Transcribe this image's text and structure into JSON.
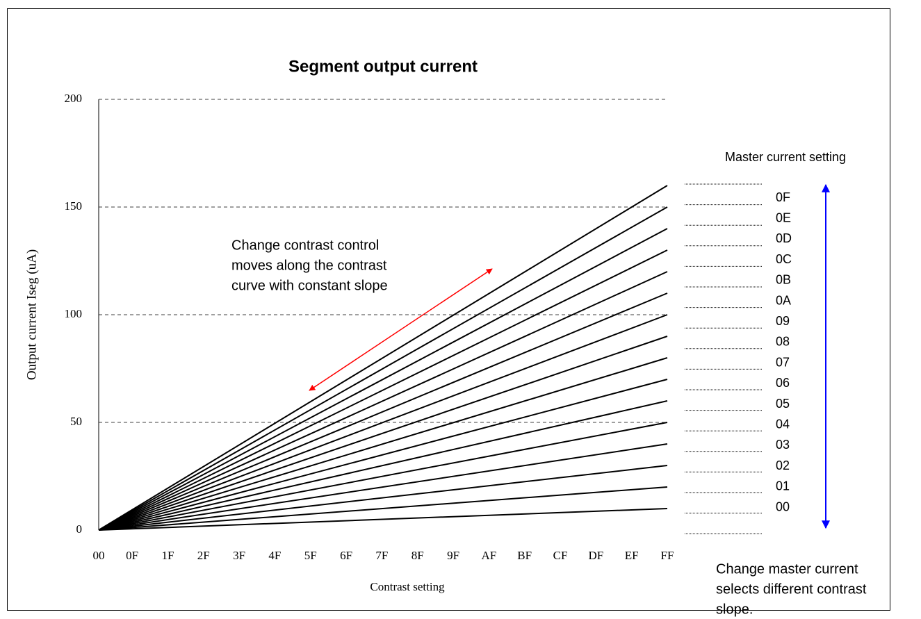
{
  "chart_data": {
    "type": "line",
    "title": "Segment output current",
    "x_label": "Contrast setting",
    "y_label": "Output current Iseg (uA)",
    "xlim": [
      0,
      255
    ],
    "xticks": [
      {
        "value": 0,
        "label": "00"
      },
      {
        "value": 15,
        "label": "0F"
      },
      {
        "value": 31,
        "label": "1F"
      },
      {
        "value": 47,
        "label": "2F"
      },
      {
        "value": 63,
        "label": "3F"
      },
      {
        "value": 79,
        "label": "4F"
      },
      {
        "value": 95,
        "label": "5F"
      },
      {
        "value": 111,
        "label": "6F"
      },
      {
        "value": 127,
        "label": "7F"
      },
      {
        "value": 143,
        "label": "8F"
      },
      {
        "value": 159,
        "label": "9F"
      },
      {
        "value": 175,
        "label": "AF"
      },
      {
        "value": 191,
        "label": "BF"
      },
      {
        "value": 207,
        "label": "CF"
      },
      {
        "value": 223,
        "label": "DF"
      },
      {
        "value": 239,
        "label": "EF"
      },
      {
        "value": 255,
        "label": "FF"
      }
    ],
    "ylim": [
      0,
      200
    ],
    "yticks": [
      0,
      50,
      100,
      150,
      200
    ],
    "grid": true,
    "legend_title": "Master current setting",
    "annotations": [
      [
        "Change contrast control",
        "moves along the contrast",
        "curve with constant slope"
      ],
      [
        "Change master current",
        "selects different contrast",
        "slope."
      ]
    ],
    "series": [
      {
        "name": "00",
        "color": "#000000",
        "x": [
          0,
          255
        ],
        "values": [
          0,
          10
        ]
      },
      {
        "name": "01",
        "color": "#000000",
        "x": [
          0,
          255
        ],
        "values": [
          0,
          20
        ]
      },
      {
        "name": "02",
        "color": "#000000",
        "x": [
          0,
          255
        ],
        "values": [
          0,
          30
        ]
      },
      {
        "name": "03",
        "color": "#000000",
        "x": [
          0,
          255
        ],
        "values": [
          0,
          40
        ]
      },
      {
        "name": "04",
        "color": "#000000",
        "x": [
          0,
          255
        ],
        "values": [
          0,
          50
        ]
      },
      {
        "name": "05",
        "color": "#000000",
        "x": [
          0,
          255
        ],
        "values": [
          0,
          60
        ]
      },
      {
        "name": "06",
        "color": "#000000",
        "x": [
          0,
          255
        ],
        "values": [
          0,
          70
        ]
      },
      {
        "name": "07",
        "color": "#000000",
        "x": [
          0,
          255
        ],
        "values": [
          0,
          80
        ]
      },
      {
        "name": "08",
        "color": "#000000",
        "x": [
          0,
          255
        ],
        "values": [
          0,
          90
        ]
      },
      {
        "name": "09",
        "color": "#000000",
        "x": [
          0,
          255
        ],
        "values": [
          0,
          100
        ]
      },
      {
        "name": "0A",
        "color": "#000000",
        "x": [
          0,
          255
        ],
        "values": [
          0,
          110
        ]
      },
      {
        "name": "0B",
        "color": "#000000",
        "x": [
          0,
          255
        ],
        "values": [
          0,
          120
        ]
      },
      {
        "name": "0C",
        "color": "#000000",
        "x": [
          0,
          255
        ],
        "values": [
          0,
          130
        ]
      },
      {
        "name": "0D",
        "color": "#000000",
        "x": [
          0,
          255
        ],
        "values": [
          0,
          140
        ]
      },
      {
        "name": "0E",
        "color": "#000000",
        "x": [
          0,
          255
        ],
        "values": [
          0,
          150
        ]
      },
      {
        "name": "0F",
        "color": "#000000",
        "x": [
          0,
          255
        ],
        "values": [
          0,
          160
        ]
      }
    ]
  }
}
